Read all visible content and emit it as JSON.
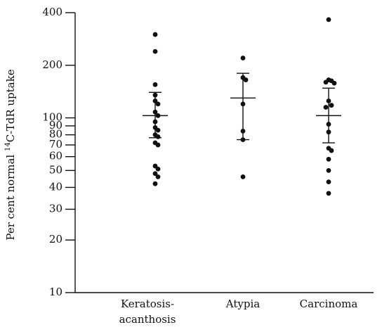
{
  "chart_data": {
    "type": "scatter",
    "title": "",
    "ylabel": "Per cent normal ",
    "ylabel_sup": "14",
    "ylabel_tail": "C-TdR uptake",
    "yscale": "log",
    "ylim": [
      10,
      400
    ],
    "yticks": [
      {
        "value": 10,
        "label": "10"
      },
      {
        "value": 20,
        "label": "20"
      },
      {
        "value": 30,
        "label": "30"
      },
      {
        "value": 40,
        "label": "40"
      },
      {
        "value": 50,
        "label": "50"
      },
      {
        "value": 60,
        "label": "60"
      },
      {
        "value": 70,
        "label": "70"
      },
      {
        "value": 80,
        "label": "80"
      },
      {
        "value": 90,
        "label": "90"
      },
      {
        "value": 100,
        "label": "100"
      },
      {
        "value": 200,
        "label": "200"
      },
      {
        "value": 400,
        "label": "400"
      }
    ],
    "groups": [
      {
        "label_lines": [
          "Keratosis-",
          "acanthosis"
        ],
        "points": [
          300,
          240,
          155,
          135,
          125,
          120,
          108,
          103,
          95,
          88,
          85,
          80,
          78,
          72,
          70,
          53,
          51,
          48,
          46,
          42
        ],
        "mean": 103,
        "error_high": 140,
        "error_low": 77
      },
      {
        "label_lines": [
          "Atypia"
        ],
        "points": [
          220,
          170,
          165,
          120,
          84,
          75,
          46
        ],
        "mean": 130,
        "error_high": 180,
        "error_low": 75
      },
      {
        "label_lines": [
          "Carcinoma"
        ],
        "points": [
          365,
          165,
          163,
          160,
          158,
          125,
          118,
          115,
          92,
          83,
          67,
          65,
          58,
          50,
          43,
          37
        ],
        "mean": 103,
        "error_high": 148,
        "error_low": 72
      }
    ]
  }
}
